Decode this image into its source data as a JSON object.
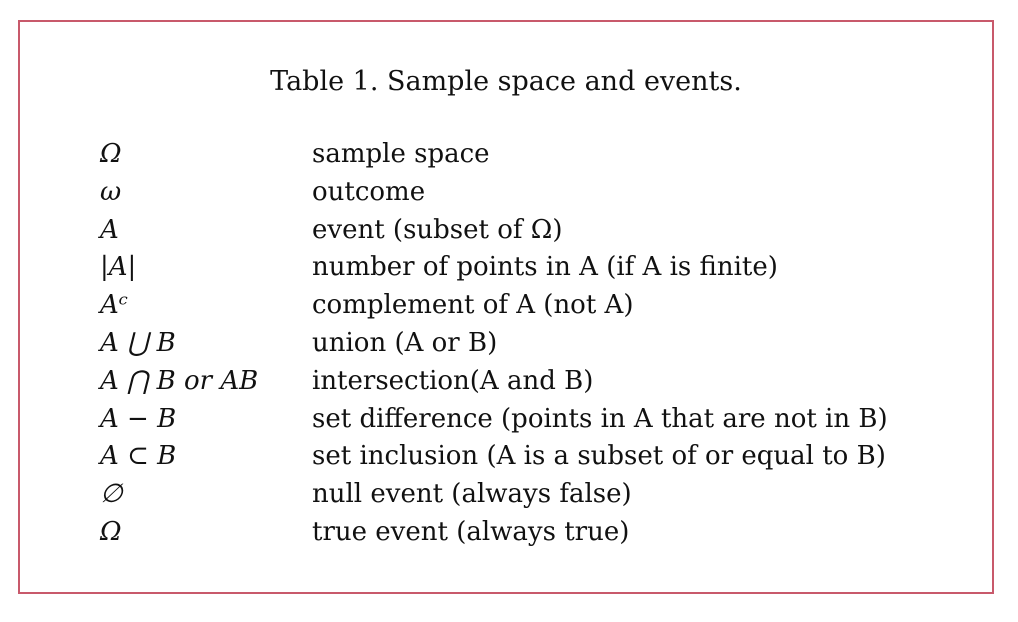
{
  "table": {
    "caption": "Table 1. Sample space and events.",
    "rows": [
      {
        "symbol": "Ω",
        "description": "sample space"
      },
      {
        "symbol": "ω",
        "description": "outcome"
      },
      {
        "symbol": "A",
        "description": "event (subset of Ω)"
      },
      {
        "symbol": "|A|",
        "description": "number of points in A (if A is finite)"
      },
      {
        "symbol": "Aᶜ",
        "description": "complement of A (not A)"
      },
      {
        "symbol": "A ⋃ B",
        "description": "union (A or B)"
      },
      {
        "symbol": "A ⋂ B or AB",
        "description": "intersection(A and B)"
      },
      {
        "symbol": "A − B",
        "description": "set difference (points in A that are not in B)"
      },
      {
        "symbol": "A ⊂ B",
        "description": "set inclusion (A is a subset of or equal to B)"
      },
      {
        "symbol": "∅",
        "description": "null event (always false)"
      },
      {
        "symbol": "Ω",
        "description": "true event (always true)"
      }
    ]
  }
}
